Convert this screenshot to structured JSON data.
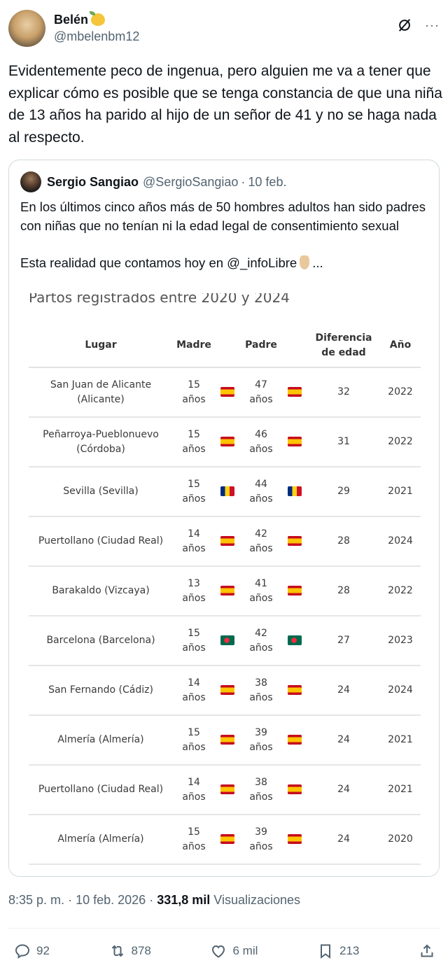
{
  "author": {
    "display_name": "Belén",
    "emoji": "lemon",
    "handle": "@mbelenbm12"
  },
  "header_icons": {
    "grok": "grok-icon",
    "more": "···"
  },
  "tweet": {
    "text": "Evidentemente peco de ingenua, pero alguien me va a tener que explicar cómo es posible que se tenga constancia de que una niña de 13 años ha parido al hijo de un señor de 41 y no se haga nada al respecto."
  },
  "quote": {
    "display_name": "Sergio Sangiao",
    "handle": "@SergioSangiao",
    "separator": "·",
    "date": "10 feb.",
    "paragraph1": "En los últimos cinco años más de 50 hombres adultos han sido padres con niñas que no tenían ni la edad legal de consentimiento sexual",
    "paragraph2_prefix": "Esta realidad que contamos hoy en @_infoLibre",
    "paragraph2_suffix": "...",
    "media": {
      "title": "Partos registrados entre 2020 y 2024",
      "headers": {
        "lugar": "Lugar",
        "madre": "Madre",
        "padre": "Padre",
        "diferencia_1": "Diferencia",
        "diferencia_2": "de edad",
        "anio": "Año"
      },
      "rows": [
        {
          "lugar_1": "San Juan de Alicante",
          "lugar_2": "(Alicante)",
          "madre": "15",
          "madre_unit": "años",
          "madre_flag": "es",
          "padre": "47",
          "padre_unit": "años",
          "padre_flag": "es",
          "diferencia": "32",
          "anio": "2022"
        },
        {
          "lugar_1": "Peñarroya-Pueblonuevo",
          "lugar_2": "(Córdoba)",
          "madre": "15",
          "madre_unit": "años",
          "madre_flag": "es",
          "padre": "46",
          "padre_unit": "años",
          "padre_flag": "es",
          "diferencia": "31",
          "anio": "2022"
        },
        {
          "lugar_1": "Sevilla (Sevilla)",
          "lugar_2": "",
          "madre": "15",
          "madre_unit": "años",
          "madre_flag": "ro",
          "padre": "44",
          "padre_unit": "años",
          "padre_flag": "ro",
          "diferencia": "29",
          "anio": "2021"
        },
        {
          "lugar_1": "Puertollano (Ciudad Real)",
          "lugar_2": "",
          "madre": "14",
          "madre_unit": "años",
          "madre_flag": "es",
          "padre": "42",
          "padre_unit": "años",
          "padre_flag": "es",
          "diferencia": "28",
          "anio": "2024"
        },
        {
          "lugar_1": "Barakaldo (Vizcaya)",
          "lugar_2": "",
          "madre": "13",
          "madre_unit": "años",
          "madre_flag": "es",
          "padre": "41",
          "padre_unit": "años",
          "padre_flag": "es",
          "diferencia": "28",
          "anio": "2022"
        },
        {
          "lugar_1": "Barcelona (Barcelona)",
          "lugar_2": "",
          "madre": "15",
          "madre_unit": "años",
          "madre_flag": "bd",
          "padre": "42",
          "padre_unit": "años",
          "padre_flag": "bd",
          "diferencia": "27",
          "anio": "2023"
        },
        {
          "lugar_1": "San Fernando (Cádiz)",
          "lugar_2": "",
          "madre": "14",
          "madre_unit": "años",
          "madre_flag": "es",
          "padre": "38",
          "padre_unit": "años",
          "padre_flag": "es",
          "diferencia": "24",
          "anio": "2024"
        },
        {
          "lugar_1": "Almería (Almería)",
          "lugar_2": "",
          "madre": "15",
          "madre_unit": "años",
          "madre_flag": "es",
          "padre": "39",
          "padre_unit": "años",
          "padre_flag": "es",
          "diferencia": "24",
          "anio": "2021"
        },
        {
          "lugar_1": "Puertollano (Ciudad Real)",
          "lugar_2": "",
          "madre": "14",
          "madre_unit": "años",
          "madre_flag": "es",
          "padre": "38",
          "padre_unit": "años",
          "padre_flag": "es",
          "diferencia": "24",
          "anio": "2021"
        },
        {
          "lugar_1": "Almería (Almería)",
          "lugar_2": "",
          "madre": "15",
          "madre_unit": "años",
          "madre_flag": "es",
          "padre": "39",
          "padre_unit": "años",
          "padre_flag": "es",
          "diferencia": "24",
          "anio": "2020"
        }
      ]
    }
  },
  "meta": {
    "time": "8:35 p. m.",
    "sep1": "·",
    "date": "10 feb. 2026",
    "sep2": "·",
    "views_count": "331,8 mil",
    "views_label": "Visualizaciones"
  },
  "actions": {
    "replies": "92",
    "reposts": "878",
    "likes": "6 mil",
    "bookmarks": "213"
  }
}
